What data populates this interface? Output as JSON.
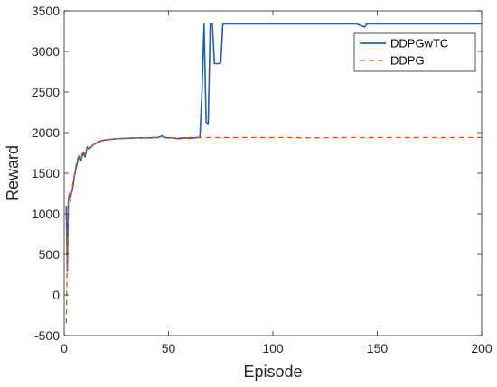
{
  "chart_data": {
    "type": "line",
    "title": "",
    "xlabel": "Episode",
    "ylabel": "Reward",
    "xlim": [
      0,
      200
    ],
    "ylim": [
      -500,
      3500
    ],
    "xticks": [
      0,
      50,
      100,
      150,
      200
    ],
    "xtick_labels": [
      "0",
      "50",
      "100",
      "150",
      "200"
    ],
    "yticks": [
      -500,
      0,
      500,
      1000,
      1500,
      2000,
      2500,
      3000,
      3500
    ],
    "ytick_labels": [
      "-500",
      "0",
      "500",
      "1000",
      "1500",
      "2000",
      "2500",
      "3000",
      "3500"
    ],
    "grid": false,
    "legend_position": "top-right",
    "series": [
      {
        "name": "DDPGwTC",
        "color": "#1f5fad",
        "style": "solid",
        "points": [
          [
            1,
            1100
          ],
          [
            1.5,
            300
          ],
          [
            2,
            1150
          ],
          [
            2.5,
            1250
          ],
          [
            3,
            1200
          ],
          [
            4,
            1300
          ],
          [
            5,
            1480
          ],
          [
            6,
            1600
          ],
          [
            7,
            1700
          ],
          [
            8,
            1650
          ],
          [
            9,
            1750
          ],
          [
            10,
            1700
          ],
          [
            11,
            1820
          ],
          [
            12,
            1800
          ],
          [
            14,
            1850
          ],
          [
            16,
            1880
          ],
          [
            18,
            1900
          ],
          [
            20,
            1910
          ],
          [
            25,
            1925
          ],
          [
            30,
            1930
          ],
          [
            35,
            1935
          ],
          [
            40,
            1935
          ],
          [
            45,
            1940
          ],
          [
            47,
            1960
          ],
          [
            48,
            1940
          ],
          [
            50,
            1935
          ],
          [
            52,
            1935
          ],
          [
            55,
            1925
          ],
          [
            58,
            1935
          ],
          [
            60,
            1930
          ],
          [
            64,
            1940
          ],
          [
            65,
            1940
          ],
          [
            66,
            2500
          ],
          [
            67,
            3340
          ],
          [
            68,
            2130
          ],
          [
            69,
            2100
          ],
          [
            70,
            3340
          ],
          [
            71,
            3340
          ],
          [
            72,
            2850
          ],
          [
            73,
            2850
          ],
          [
            74,
            2850
          ],
          [
            75,
            2860
          ],
          [
            76,
            3340
          ],
          [
            80,
            3340
          ],
          [
            100,
            3340
          ],
          [
            120,
            3340
          ],
          [
            140,
            3340
          ],
          [
            143,
            3310
          ],
          [
            144,
            3300
          ],
          [
            145,
            3340
          ],
          [
            160,
            3340
          ],
          [
            180,
            3340
          ],
          [
            200,
            3340
          ]
        ]
      },
      {
        "name": "DDPG",
        "color": "#d9541e",
        "style": "dashed",
        "points": [
          [
            1,
            -350
          ],
          [
            1.5,
            500
          ],
          [
            2,
            1200
          ],
          [
            2.5,
            1250
          ],
          [
            3,
            1150
          ],
          [
            4,
            1350
          ],
          [
            5,
            1500
          ],
          [
            6,
            1650
          ],
          [
            7,
            1720
          ],
          [
            8,
            1680
          ],
          [
            9,
            1780
          ],
          [
            10,
            1720
          ],
          [
            11,
            1830
          ],
          [
            12,
            1810
          ],
          [
            14,
            1850
          ],
          [
            16,
            1890
          ],
          [
            18,
            1905
          ],
          [
            20,
            1915
          ],
          [
            25,
            1925
          ],
          [
            30,
            1932
          ],
          [
            35,
            1935
          ],
          [
            40,
            1938
          ],
          [
            45,
            1942
          ],
          [
            47,
            1950
          ],
          [
            50,
            1940
          ],
          [
            55,
            1935
          ],
          [
            60,
            1940
          ],
          [
            65,
            1940
          ],
          [
            70,
            1940
          ],
          [
            80,
            1940
          ],
          [
            90,
            1940
          ],
          [
            100,
            1940
          ],
          [
            110,
            1940
          ],
          [
            120,
            1935
          ],
          [
            130,
            1940
          ],
          [
            140,
            1940
          ],
          [
            150,
            1940
          ],
          [
            160,
            1940
          ],
          [
            170,
            1940
          ],
          [
            180,
            1940
          ],
          [
            190,
            1940
          ],
          [
            200,
            1940
          ]
        ]
      }
    ]
  }
}
